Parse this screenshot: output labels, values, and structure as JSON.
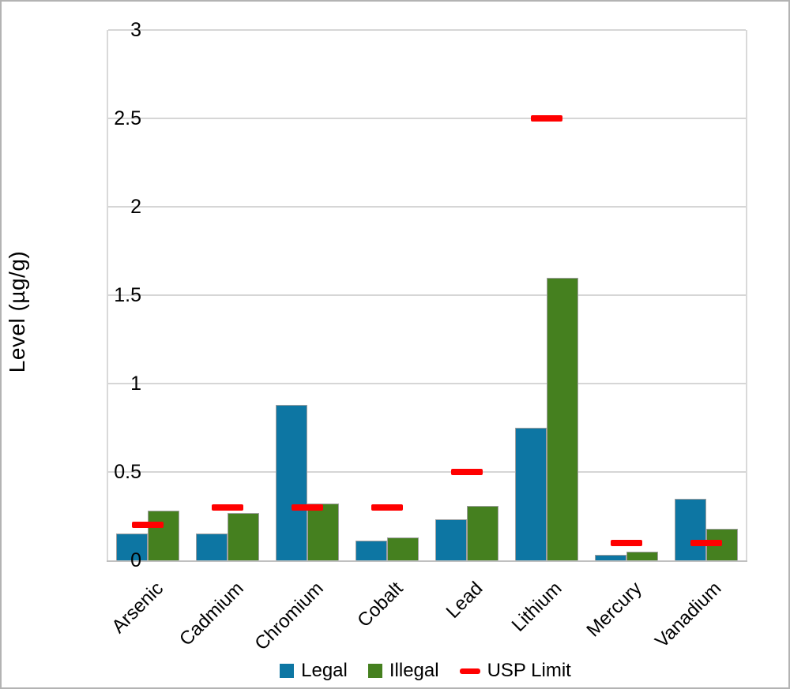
{
  "chart_data": {
    "type": "bar",
    "title": "",
    "xlabel": "",
    "ylabel": "Level (µg/g)",
    "categories": [
      "Arsenic",
      "Cadmium",
      "Chromium",
      "Cobalt",
      "Lead",
      "Lithium",
      "Mercury",
      "Vanadium"
    ],
    "series": [
      {
        "name": "Legal",
        "style": "bar",
        "color": "#0d76a3",
        "values": [
          0.15,
          0.15,
          0.88,
          0.11,
          0.23,
          0.75,
          0.03,
          0.35
        ]
      },
      {
        "name": "Illegal",
        "style": "bar",
        "color": "#45801f",
        "values": [
          0.28,
          0.27,
          0.32,
          0.13,
          0.31,
          1.6,
          0.05,
          0.18
        ]
      },
      {
        "name": "USP Limit",
        "style": "dash",
        "color": "#ff0000",
        "values": [
          0.2,
          0.3,
          0.3,
          0.3,
          0.5,
          2.5,
          0.1,
          0.1
        ]
      }
    ],
    "ylim": [
      0,
      3
    ],
    "yticks": [
      0,
      0.5,
      1,
      1.5,
      2,
      2.5,
      3
    ],
    "ytick_labels": [
      "0",
      "0.5",
      "1",
      "1.5",
      "2",
      "2.5",
      "3"
    ],
    "grid": true,
    "legend_position": "bottom"
  },
  "colors": {
    "legal_blue": "#0d76a3",
    "illegal_green": "#45801f",
    "usp_red": "#ff0000",
    "gridline": "#d6d6d6",
    "frame_border": "#b3b3b3"
  }
}
